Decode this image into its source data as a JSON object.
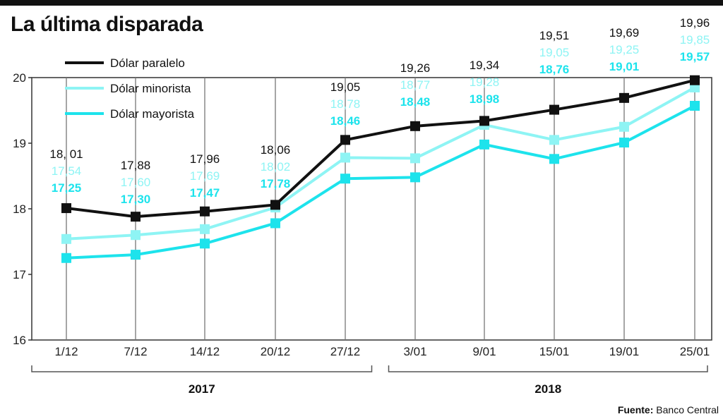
{
  "chart_data": {
    "type": "line",
    "title": "La última disparada",
    "categories": [
      "1/12",
      "7/12",
      "14/12",
      "20/12",
      "27/12",
      "3/01",
      "9/01",
      "15/01",
      "19/01",
      "25/01"
    ],
    "category_groups": [
      {
        "label": "2017",
        "from": "1/12",
        "to": "27/12"
      },
      {
        "label": "2018",
        "from": "3/01",
        "to": "25/01"
      }
    ],
    "ylim": [
      16,
      20
    ],
    "yticks": [
      16,
      17,
      18,
      19,
      20
    ],
    "grid": "vertical",
    "legend_position": "top-left",
    "series": [
      {
        "name": "Dólar paralelo",
        "color": "#111111",
        "values": [
          18.01,
          17.88,
          17.96,
          18.06,
          19.05,
          19.26,
          19.34,
          19.51,
          19.69,
          19.96
        ],
        "labels": [
          "18, 01",
          "17,88",
          "17,96",
          "18,06",
          "19,05",
          "19,26",
          "19,34",
          "19,51",
          "19,69",
          "19,96"
        ]
      },
      {
        "name": "Dólar minorista",
        "color": "#8ef4f4",
        "values": [
          17.54,
          17.6,
          17.69,
          18.02,
          18.78,
          18.77,
          19.28,
          19.05,
          19.25,
          19.85
        ],
        "labels": [
          "17,54",
          "17,60",
          "17,69",
          "18,02",
          "18,78",
          "18,77",
          "19,28",
          "19,05",
          "19,25",
          "19,85"
        ]
      },
      {
        "name": "Dólar mayorista",
        "color": "#1de3ec",
        "values": [
          17.25,
          17.3,
          17.47,
          17.78,
          18.46,
          18.48,
          18.98,
          18.76,
          19.01,
          19.57
        ],
        "labels": [
          "17,25",
          "17,30",
          "17,47",
          "17,78",
          "18,46",
          "18,48",
          "18,98",
          "18,76",
          "19,01",
          "19,57"
        ]
      }
    ]
  },
  "source": {
    "label": "Fuente:",
    "text": "Banco Central"
  }
}
